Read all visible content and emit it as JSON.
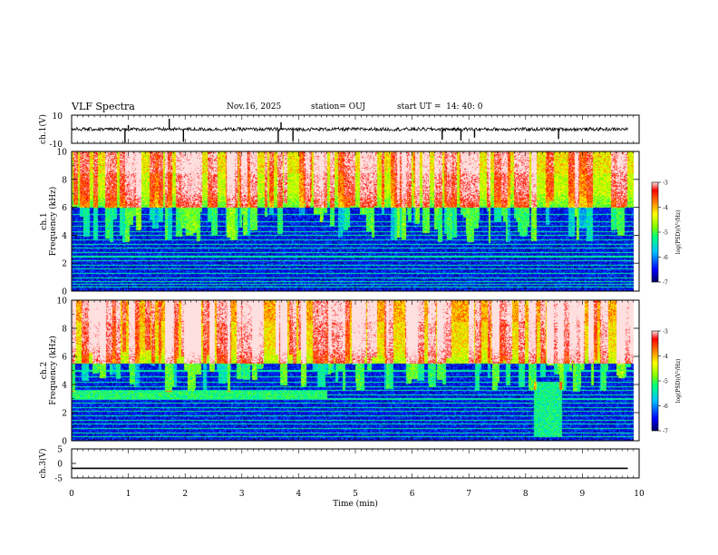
{
  "header": {
    "title": "VLF Spectra",
    "date": "Nov.16, 2025",
    "station": "station= OUJ",
    "start": "start UT =  14: 40: 0"
  },
  "colors": {
    "background": "#ffffff",
    "axis": "#000000",
    "trace": "#000000",
    "colormap": [
      "#000060",
      "#0000ff",
      "#00c0ff",
      "#00ff80",
      "#80ff00",
      "#ffff00",
      "#ff8000",
      "#ff0000",
      "#ffe0e0"
    ]
  },
  "chart_data": [
    {
      "type": "line",
      "name": "ch1-waveform",
      "ylabel": "ch.1(V)",
      "ylim": [
        -10,
        10
      ],
      "yticks": [
        "10",
        "-10"
      ],
      "xlim": [
        0,
        10
      ],
      "baseline": 0,
      "spikes": [
        {
          "x": 0.94,
          "y": -9.5
        },
        {
          "x": 1.0,
          "y": 3.0
        },
        {
          "x": 1.72,
          "y": 7.5
        },
        {
          "x": 1.97,
          "y": -9.0
        },
        {
          "x": 3.64,
          "y": -9.5
        },
        {
          "x": 3.69,
          "y": 5.0
        },
        {
          "x": 3.9,
          "y": -8.5
        },
        {
          "x": 6.53,
          "y": -7.5
        },
        {
          "x": 6.86,
          "y": -8.0
        },
        {
          "x": 7.1,
          "y": -6.0
        },
        {
          "x": 8.58,
          "y": -7.0
        }
      ]
    },
    {
      "type": "heatmap",
      "name": "ch1-spectrogram",
      "ylabel": "Frequency (kHz)",
      "channel_label": "ch.1",
      "xlim": [
        0,
        10
      ],
      "ylim": [
        0,
        10
      ],
      "yticks": [
        "0",
        "2",
        "4",
        "6",
        "8",
        "10"
      ],
      "colorbar": {
        "label": "log(PSD)(V²/Hz)",
        "ticks": [
          "-3",
          "-4",
          "-5",
          "-6",
          "-7"
        ],
        "range": [
          -7,
          -3
        ]
      },
      "lines_khz": [
        0.3,
        0.5,
        0.7,
        1.0,
        1.3,
        1.6,
        1.9,
        2.2,
        2.5,
        2.8,
        3.1,
        3.4,
        3.7,
        4.0,
        4.3,
        4.7,
        5.0,
        5.5
      ],
      "bands": [
        {
          "t0": 0,
          "t1": 9.8,
          "f0": 6.0,
          "f1": 10.0,
          "level": -4.5
        },
        {
          "t0": 0,
          "t1": 9.8,
          "f0": 0,
          "f1": 6.0,
          "level": -6.5
        }
      ]
    },
    {
      "type": "heatmap",
      "name": "ch2-spectrogram",
      "ylabel": "Frequency (kHz)",
      "channel_label": "ch.2",
      "xlim": [
        0,
        10
      ],
      "ylim": [
        0,
        10
      ],
      "yticks": [
        "0",
        "2",
        "4",
        "6",
        "8",
        "10"
      ],
      "colorbar": {
        "label": "log(PSD)(V²/Hz)",
        "ticks": [
          "-3",
          "-4",
          "-5",
          "-6",
          "-7"
        ],
        "range": [
          -7,
          -3
        ]
      },
      "lines_khz": [
        0.3,
        0.6,
        0.9,
        1.2,
        1.5,
        1.8,
        2.1,
        2.4,
        2.7,
        3.0,
        3.3,
        3.6,
        3.9,
        4.2,
        4.6,
        5.0
      ],
      "bands": [
        {
          "t0": 0,
          "t1": 9.8,
          "f0": 5.5,
          "f1": 10.0,
          "level": -4.2
        },
        {
          "t0": 0,
          "t1": 4.45,
          "f0": 3.0,
          "f1": 3.6,
          "level": -5.2
        },
        {
          "t0": 8.05,
          "t1": 8.55,
          "f0": 0.3,
          "f1": 4.2,
          "level": -5.3
        },
        {
          "t0": 0,
          "t1": 9.8,
          "f0": 0,
          "f1": 5.5,
          "level": -6.5
        }
      ]
    },
    {
      "type": "line",
      "name": "ch3-waveform",
      "ylabel": "ch.3(V)",
      "ylim": [
        -5,
        5
      ],
      "yticks": [
        "5",
        "0",
        "-5"
      ],
      "xlim": [
        0,
        10
      ],
      "xticks": [
        "0",
        "1",
        "2",
        "3",
        "4",
        "5",
        "6",
        "7",
        "8",
        "9",
        "10"
      ],
      "xlabel": "Time (min)",
      "values": [
        {
          "x": 0,
          "y": -1.7
        },
        {
          "x": 9.8,
          "y": -1.7
        }
      ]
    }
  ]
}
